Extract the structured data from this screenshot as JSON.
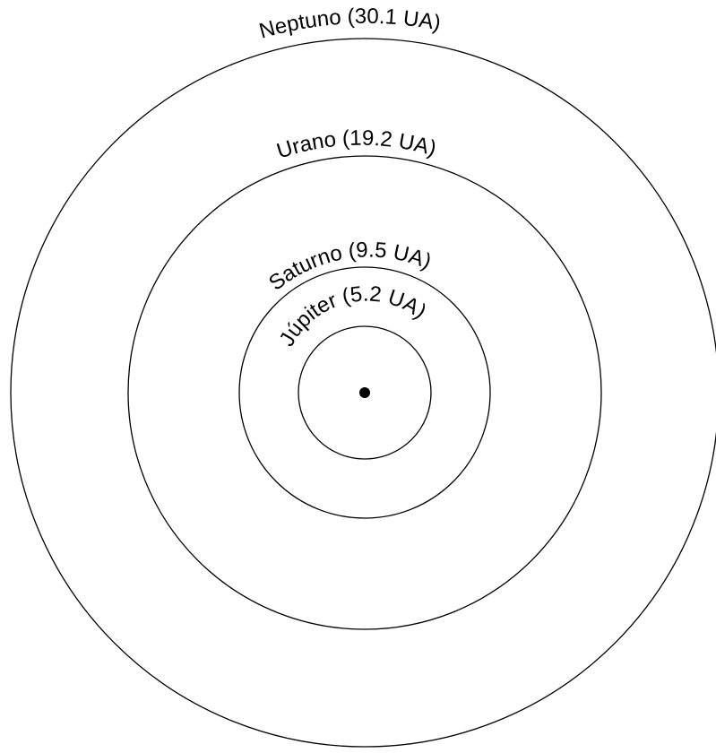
{
  "diagram": {
    "center_marker": "sun-dot",
    "orbits": [
      {
        "id": "neptuno",
        "planet": "Neptuno",
        "label": "Neptuno (30.1 UA)",
        "distance_au": 30.1
      },
      {
        "id": "urano",
        "planet": "Urano",
        "label": "Urano (19.2 UA)",
        "distance_au": 19.2
      },
      {
        "id": "saturno",
        "planet": "Saturno",
        "label": "Saturno (9.5 UA)",
        "distance_au": 9.5
      },
      {
        "id": "jupiter",
        "planet": "Júpiter",
        "label": "Júpiter (5.2 UA)",
        "distance_au": 5.2
      }
    ]
  }
}
